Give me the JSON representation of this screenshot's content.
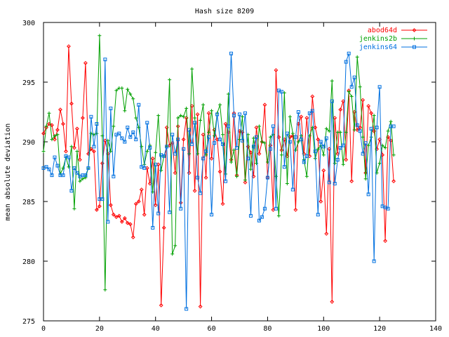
{
  "chart_data": {
    "type": "line",
    "title": "Hash size 8209",
    "xlabel": "",
    "ylabel": "mean absolute deviation",
    "xlim": [
      0,
      140
    ],
    "ylim": [
      275,
      300
    ],
    "x_ticks": [
      0,
      20,
      40,
      60,
      80,
      100,
      120,
      140
    ],
    "y_ticks": [
      275,
      280,
      285,
      290,
      295,
      300
    ],
    "grid": false,
    "legend_position": "top-right",
    "series": [
      {
        "name": "abod64d",
        "color": "#ff0000",
        "marker": "diamond",
        "x": [
          0,
          1,
          2,
          3,
          4,
          5,
          6,
          7,
          8,
          9,
          10,
          11,
          12,
          13,
          14,
          15,
          16,
          17,
          18,
          19,
          20,
          21,
          22,
          23,
          24,
          25,
          26,
          27,
          28,
          29,
          30,
          31,
          32,
          33,
          34,
          35,
          36,
          37,
          38,
          39,
          40,
          41,
          42,
          43,
          44,
          45,
          46,
          47,
          48,
          49,
          50,
          51,
          52,
          53,
          54,
          55,
          56,
          57,
          58,
          59,
          60,
          61,
          62,
          63,
          64,
          65,
          66,
          67,
          68,
          69,
          70,
          71,
          72,
          73,
          74,
          75,
          76,
          77,
          78,
          79,
          80,
          81,
          82,
          83,
          84,
          85,
          86,
          87,
          88,
          89,
          90,
          91,
          92,
          93,
          94,
          95,
          96,
          97,
          98,
          99,
          100,
          101,
          102,
          103,
          104,
          105,
          106,
          107,
          108,
          109,
          110,
          111,
          112,
          113,
          114,
          115,
          116,
          117,
          118,
          119,
          120,
          121,
          122,
          123,
          124,
          125
        ],
        "values": [
          290.7,
          291.2,
          291.5,
          291.4,
          290.2,
          291.0,
          292.7,
          291.5,
          289.2,
          298.0,
          293.2,
          289.5,
          291.1,
          288.5,
          292.0,
          296.6,
          289.0,
          289.4,
          289.2,
          284.3,
          284.6,
          288.2,
          290.1,
          289.0,
          284.7,
          283.9,
          283.7,
          283.8,
          283.3,
          283.6,
          283.2,
          283.1,
          282.0,
          284.8,
          285.0,
          286.0,
          283.9,
          287.8,
          286.5,
          288.6,
          284.7,
          288.1,
          276.3,
          282.8,
          291.2,
          289.7,
          289.9,
          287.4,
          291.3,
          284.9,
          290.2,
          292.0,
          287.4,
          293.0,
          285.9,
          292.3,
          276.2,
          290.6,
          287.0,
          292.4,
          288.6,
          291.0,
          290.2,
          287.5,
          284.8,
          291.5,
          290.8,
          288.5,
          292.4,
          287.2,
          290.9,
          290.8,
          286.6,
          289.6,
          289.1,
          287.1,
          291.2,
          289.0,
          290.0,
          293.1,
          287.0,
          289.7,
          284.3,
          296.0,
          290.4,
          289.3,
          290.2,
          288.8,
          290.4,
          290.5,
          284.3,
          291.5,
          292.1,
          289.0,
          292.0,
          288.8,
          293.8,
          291.2,
          290.2,
          285.0,
          287.6,
          282.3,
          289.4,
          276.6,
          292.0,
          289.0,
          292.7,
          293.4,
          288.5,
          294.3,
          286.7,
          292.5,
          291.0,
          291.2,
          293.5,
          287.4,
          293.0,
          292.4,
          290.9,
          289.4,
          290.2,
          288.9,
          281.7,
          290.4,
          290.1,
          286.7
        ]
      },
      {
        "name": "jenkins2b",
        "color": "#00a000",
        "marker": "plus",
        "x": [
          0,
          1,
          2,
          3,
          4,
          5,
          6,
          7,
          8,
          9,
          10,
          11,
          12,
          13,
          14,
          15,
          16,
          17,
          18,
          19,
          20,
          21,
          22,
          23,
          24,
          25,
          26,
          27,
          28,
          29,
          30,
          31,
          32,
          33,
          34,
          35,
          36,
          37,
          38,
          39,
          40,
          41,
          42,
          43,
          44,
          45,
          46,
          47,
          48,
          49,
          50,
          51,
          52,
          53,
          54,
          55,
          56,
          57,
          58,
          59,
          60,
          61,
          62,
          63,
          64,
          65,
          66,
          67,
          68,
          69,
          70,
          71,
          72,
          73,
          74,
          75,
          76,
          77,
          78,
          79,
          80,
          81,
          82,
          83,
          84,
          85,
          86,
          87,
          88,
          89,
          90,
          91,
          92,
          93,
          94,
          95,
          96,
          97,
          98,
          99,
          100,
          101,
          102,
          103,
          104,
          105,
          106,
          107,
          108,
          109,
          110,
          111,
          112,
          113,
          114,
          115,
          116,
          117,
          118,
          119,
          120,
          121,
          122,
          123,
          124,
          125
        ],
        "values": [
          289.2,
          291.3,
          292.4,
          290.2,
          290.5,
          290.6,
          287.3,
          287.8,
          288.7,
          287.9,
          289.6,
          284.4,
          289.2,
          286.7,
          286.9,
          287.0,
          287.8,
          290.7,
          290.6,
          290.7,
          298.9,
          290.5,
          277.6,
          290.1,
          289.2,
          291.3,
          294.3,
          294.5,
          294.5,
          292.6,
          294.4,
          294.0,
          293.6,
          292.0,
          291.2,
          289.6,
          288.1,
          289.2,
          289.7,
          285.8,
          289.1,
          292.2,
          287.6,
          288.8,
          289.6,
          295.2,
          280.6,
          281.3,
          292.0,
          292.2,
          292.1,
          292.8,
          289.0,
          296.1,
          292.0,
          289.0,
          291.8,
          293.1,
          288.9,
          290.8,
          292.6,
          290.5,
          292.4,
          293.1,
          290.6,
          287.3,
          294.0,
          288.3,
          289.3,
          287.1,
          290.2,
          292.1,
          286.8,
          290.6,
          287.7,
          290.3,
          288.2,
          291.3,
          290.0,
          289.9,
          288.3,
          290.4,
          290.6,
          287.1,
          283.8,
          288.9,
          294.1,
          286.5,
          292.1,
          290.7,
          289.3,
          290.0,
          290.5,
          288.5,
          287.1,
          290.5,
          291.2,
          288.6,
          289.4,
          289.7,
          288.9,
          291.1,
          290.9,
          295.1,
          288.2,
          290.8,
          290.8,
          288.1,
          290.8,
          294.2,
          293.8,
          291.0,
          297.1,
          294.6,
          290.4,
          286.9,
          289.7,
          290.4,
          292.2,
          287.4,
          288.2,
          289.7,
          289.5,
          290.9,
          291.7,
          288.9
        ]
      },
      {
        "name": "jenkins64",
        "color": "#0070e0",
        "marker": "square",
        "x": [
          0,
          1,
          2,
          3,
          4,
          5,
          6,
          7,
          8,
          9,
          10,
          11,
          12,
          13,
          14,
          15,
          16,
          17,
          18,
          19,
          20,
          21,
          22,
          23,
          24,
          25,
          26,
          27,
          28,
          29,
          30,
          31,
          32,
          33,
          34,
          35,
          36,
          37,
          38,
          39,
          40,
          41,
          42,
          43,
          44,
          45,
          46,
          47,
          48,
          49,
          50,
          51,
          52,
          53,
          54,
          55,
          56,
          57,
          58,
          59,
          60,
          61,
          62,
          63,
          64,
          65,
          66,
          67,
          68,
          69,
          70,
          71,
          72,
          73,
          74,
          75,
          76,
          77,
          78,
          79,
          80,
          81,
          82,
          83,
          84,
          85,
          86,
          87,
          88,
          89,
          90,
          91,
          92,
          93,
          94,
          95,
          96,
          97,
          98,
          99,
          100,
          101,
          102,
          103,
          104,
          105,
          106,
          107,
          108,
          109,
          110,
          111,
          112,
          113,
          114,
          115,
          116,
          117,
          118,
          119,
          120,
          121,
          122,
          123,
          124,
          125
        ],
        "values": [
          287.8,
          287.9,
          287.7,
          287.2,
          288.7,
          288.0,
          287.2,
          287.2,
          288.8,
          288.7,
          285.9,
          287.8,
          287.4,
          287.1,
          287.2,
          287.2,
          287.8,
          292.1,
          289.6,
          291.5,
          285.2,
          285.2,
          296.9,
          283.3,
          292.8,
          287.1,
          290.6,
          290.7,
          290.3,
          290.0,
          291.2,
          290.4,
          290.8,
          290.2,
          293.1,
          287.9,
          287.8,
          291.6,
          289.5,
          282.8,
          288.1,
          284.0,
          288.9,
          288.8,
          289.6,
          284.1,
          290.6,
          289.0,
          290.2,
          284.4,
          289.4,
          276.0,
          291.0,
          289.8,
          291.6,
          287.0,
          285.7,
          288.6,
          289.2,
          290.4,
          283.9,
          289.9,
          292.3,
          290.2,
          289.8,
          286.7,
          291.3,
          297.4,
          292.2,
          289.5,
          292.3,
          290.1,
          292.4,
          288.6,
          283.8,
          289.6,
          290.4,
          283.4,
          283.7,
          284.4,
          287.0,
          289.4,
          291.3,
          284.4,
          294.3,
          294.2,
          287.9,
          290.7,
          290.0,
          286.0,
          290.4,
          292.5,
          290.2,
          288.3,
          288.8,
          292.4,
          292.6,
          289.2,
          283.9,
          290.0,
          289.6,
          290.3,
          286.6,
          293.4,
          286.5,
          288.5,
          289.5,
          289.7,
          296.7,
          297.4,
          294.6,
          295.4,
          291.4,
          290.9,
          289.0,
          289.9,
          285.6,
          291.1,
          280.0,
          291.2,
          294.6,
          284.6,
          284.5,
          284.4,
          291.3,
          291.3
        ]
      }
    ]
  }
}
